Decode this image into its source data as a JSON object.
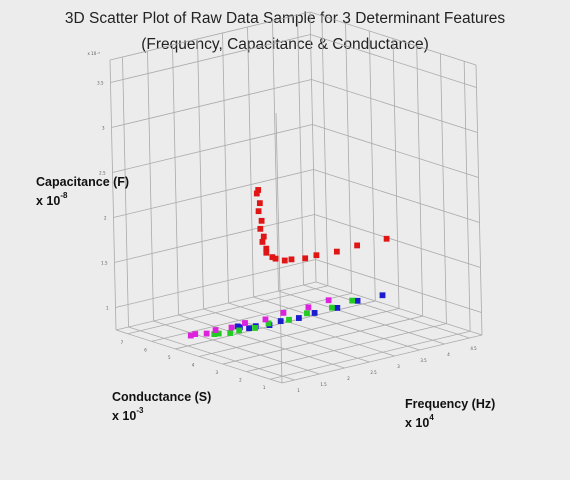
{
  "chart_data": {
    "type": "scatter",
    "title": "3D Scatter Plot of Raw Data Sample for 3 Determinant Features",
    "subtitle": "(Frequency, Capacitance & Conductance)",
    "labels": {
      "z_name": "Capacitance (F)",
      "z_mult": "x 10",
      "z_exp": "-8",
      "y_name": "Conductance (S)",
      "y_mult": "x 10",
      "y_exp": "-3",
      "x_name": "Frequency (Hz)",
      "x_mult": "x 10",
      "x_exp": "4",
      "z_exponent_note": "x 10⁻⁸"
    },
    "axes": {
      "x": {
        "ticks": [
          "1",
          "1.5",
          "2",
          "2.5",
          "3",
          "3.5",
          "4",
          "4.5"
        ]
      },
      "y": {
        "ticks": [
          "1",
          "2",
          "3",
          "4",
          "5",
          "6",
          "7"
        ]
      },
      "z": {
        "ticks": [
          "1",
          "1.5",
          "2",
          "2.5",
          "3",
          "3.5"
        ],
        "range": [
          0.5,
          3.5
        ]
      },
      "grid": true
    },
    "series": [
      {
        "color": "#e01515",
        "points": [
          {
            "x": 1.0,
            "y": 2.0,
            "z": 2.55
          },
          {
            "x": 1.02,
            "y": 2.1,
            "z": 2.5
          },
          {
            "x": 1.03,
            "y": 2.0,
            "z": 2.4
          },
          {
            "x": 1.05,
            "y": 2.1,
            "z": 2.3
          },
          {
            "x": 1.06,
            "y": 2.0,
            "z": 2.2
          },
          {
            "x": 1.08,
            "y": 2.1,
            "z": 2.1
          },
          {
            "x": 1.1,
            "y": 2.0,
            "z": 2.02
          },
          {
            "x": 1.12,
            "y": 2.1,
            "z": 1.95
          },
          {
            "x": 1.15,
            "y": 2.0,
            "z": 1.88
          },
          {
            "x": 1.2,
            "y": 2.1,
            "z": 1.82
          },
          {
            "x": 1.28,
            "y": 2.0,
            "z": 1.77
          },
          {
            "x": 1.4,
            "y": 2.1,
            "z": 1.73
          },
          {
            "x": 1.55,
            "y": 2.0,
            "z": 1.7
          },
          {
            "x": 1.75,
            "y": 2.1,
            "z": 1.68
          },
          {
            "x": 2.0,
            "y": 2.0,
            "z": 1.67
          },
          {
            "x": 2.3,
            "y": 2.1,
            "z": 1.66
          },
          {
            "x": 2.7,
            "y": 2.0,
            "z": 1.66
          },
          {
            "x": 3.2,
            "y": 2.1,
            "z": 1.66
          },
          {
            "x": 3.8,
            "y": 2.0,
            "z": 1.67
          }
        ]
      },
      {
        "color": "#1c1ccf",
        "points": [
          {
            "x": 1.0,
            "y": 3.0,
            "z": 0.95
          },
          {
            "x": 1.1,
            "y": 3.1,
            "z": 0.92
          },
          {
            "x": 1.25,
            "y": 3.0,
            "z": 0.9
          },
          {
            "x": 1.45,
            "y": 3.1,
            "z": 0.89
          },
          {
            "x": 1.7,
            "y": 3.0,
            "z": 0.88
          },
          {
            "x": 2.0,
            "y": 3.1,
            "z": 0.88
          },
          {
            "x": 2.35,
            "y": 3.0,
            "z": 0.88
          },
          {
            "x": 2.75,
            "y": 3.1,
            "z": 0.88
          },
          {
            "x": 3.2,
            "y": 3.0,
            "z": 0.89
          },
          {
            "x": 3.7,
            "y": 3.1,
            "z": 0.9
          },
          {
            "x": 4.2,
            "y": 3.0,
            "z": 0.91
          }
        ]
      },
      {
        "color": "#22cc22",
        "points": [
          {
            "x": 1.0,
            "y": 4.0,
            "z": 0.78
          },
          {
            "x": 1.15,
            "y": 4.1,
            "z": 0.76
          },
          {
            "x": 1.35,
            "y": 4.0,
            "z": 0.75
          },
          {
            "x": 1.6,
            "y": 4.1,
            "z": 0.74
          },
          {
            "x": 1.9,
            "y": 4.0,
            "z": 0.74
          },
          {
            "x": 2.25,
            "y": 4.1,
            "z": 0.74
          },
          {
            "x": 2.65,
            "y": 4.0,
            "z": 0.74
          },
          {
            "x": 3.1,
            "y": 4.1,
            "z": 0.75
          },
          {
            "x": 3.6,
            "y": 4.0,
            "z": 0.76
          },
          {
            "x": 4.1,
            "y": 4.1,
            "z": 0.77
          }
        ]
      },
      {
        "color": "#dd22dd",
        "points": [
          {
            "x": 1.0,
            "y": 5.0,
            "z": 0.68
          },
          {
            "x": 1.15,
            "y": 5.1,
            "z": 0.67
          },
          {
            "x": 1.35,
            "y": 5.0,
            "z": 0.66
          },
          {
            "x": 1.6,
            "y": 5.1,
            "z": 0.66
          },
          {
            "x": 1.9,
            "y": 5.0,
            "z": 0.66
          },
          {
            "x": 2.25,
            "y": 5.1,
            "z": 0.66
          },
          {
            "x": 2.65,
            "y": 5.0,
            "z": 0.66
          },
          {
            "x": 3.1,
            "y": 5.1,
            "z": 0.67
          },
          {
            "x": 3.6,
            "y": 5.0,
            "z": 0.68
          },
          {
            "x": 4.1,
            "y": 5.1,
            "z": 0.69
          }
        ]
      }
    ]
  }
}
